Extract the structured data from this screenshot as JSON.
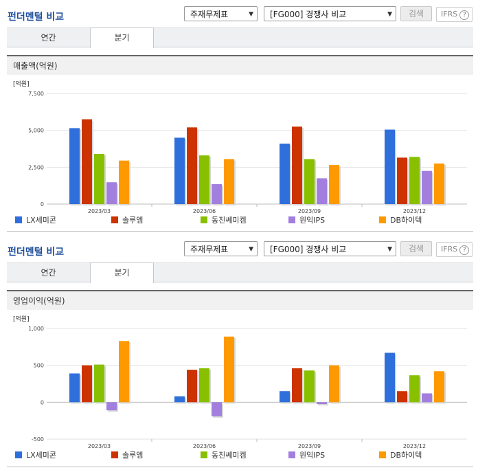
{
  "sections": [
    {
      "title": "펀더멘털 비교",
      "select1": "주재무제표",
      "select2": "[FG000] 경쟁사 비교",
      "search_btn": "검색",
      "ifrs": "IFRS",
      "tabs": [
        "연간",
        "분기"
      ],
      "active_tab": "분기",
      "panel_title": "매출액(억원)"
    },
    {
      "title": "펀더멘털 비교",
      "select1": "주재무제표",
      "select2": "[FG000] 경쟁사 비교",
      "search_btn": "검색",
      "ifrs": "IFRS",
      "tabs": [
        "연간",
        "분기"
      ],
      "active_tab": "분기",
      "panel_title": "영업이익(억원)"
    }
  ],
  "chart_data": [
    {
      "type": "bar",
      "unit_label": "[억원]",
      "categories": [
        "2023/03",
        "2023/06",
        "2023/09",
        "2023/12"
      ],
      "y_ticks": [
        "7,500",
        "5,000",
        "2,500",
        "0"
      ],
      "ylim": [
        0,
        7500
      ],
      "series": [
        {
          "name": "LX세미콘",
          "color": "#2f6fdc",
          "values": [
            5150,
            4500,
            4100,
            5050
          ]
        },
        {
          "name": "솔루엠",
          "color": "#cc3300",
          "values": [
            5750,
            5200,
            5250,
            3150
          ]
        },
        {
          "name": "동진쎄미켐",
          "color": "#88c000",
          "values": [
            3400,
            3300,
            3050,
            3200
          ]
        },
        {
          "name": "원익IPS",
          "color": "#a27fdf",
          "values": [
            1480,
            1350,
            1750,
            2250
          ]
        },
        {
          "name": "DB하이텍",
          "color": "#ff9900",
          "values": [
            2950,
            3050,
            2650,
            2750
          ]
        }
      ]
    },
    {
      "type": "bar",
      "unit_label": "[억원]",
      "categories": [
        "2023/03",
        "2023/06",
        "2023/09",
        "2023/12"
      ],
      "y_ticks": [
        "1,000",
        "500",
        "0",
        "-500"
      ],
      "ylim": [
        -500,
        1000
      ],
      "series": [
        {
          "name": "LX세미콘",
          "color": "#2f6fdc",
          "values": [
            390,
            80,
            150,
            670
          ]
        },
        {
          "name": "솔루엠",
          "color": "#cc3300",
          "values": [
            500,
            440,
            460,
            150
          ]
        },
        {
          "name": "동진쎄미켐",
          "color": "#88c000",
          "values": [
            510,
            460,
            430,
            365
          ]
        },
        {
          "name": "원익IPS",
          "color": "#a27fdf",
          "values": [
            -110,
            -190,
            -25,
            120
          ]
        },
        {
          "name": "DB하이텍",
          "color": "#ff9900",
          "values": [
            830,
            890,
            500,
            420
          ]
        }
      ]
    }
  ]
}
